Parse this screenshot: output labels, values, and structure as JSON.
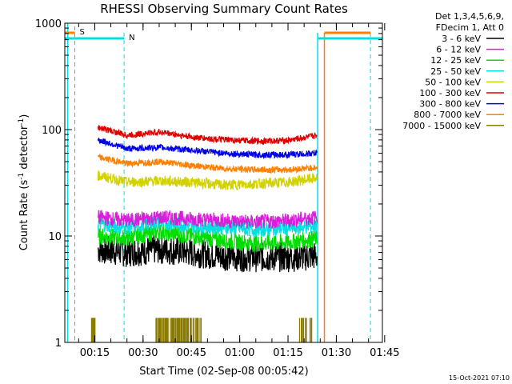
{
  "chart_data": {
    "type": "line",
    "title": "RHESSI Observing Summary Count Rates",
    "xlabel": "Start Time (02-Sep-08 00:05:42)",
    "ylabel_main": "Count Rate (s",
    "ylabel_sup1": "-1",
    "ylabel_mid": " detector",
    "ylabel_sup2": "-1",
    "ylabel_end": ")",
    "yscale": "log",
    "ylim": [
      1,
      1000
    ],
    "xlim_minutes": [
      5.7,
      104.3
    ],
    "y_ticks": [
      {
        "value": 1,
        "label": "1"
      },
      {
        "value": 10,
        "label": "10"
      },
      {
        "value": 100,
        "label": "100"
      },
      {
        "value": 1000,
        "label": "1000"
      }
    ],
    "x_ticks": [
      {
        "value": 15,
        "label": "00:15"
      },
      {
        "value": 30,
        "label": "00:30"
      },
      {
        "value": 45,
        "label": "00:45"
      },
      {
        "value": 60,
        "label": "01:00"
      },
      {
        "value": 75,
        "label": "01:15"
      },
      {
        "value": 90,
        "label": "01:30"
      },
      {
        "value": 105,
        "label": "01:45"
      }
    ],
    "legend_header": [
      "Det 1,3,4,5,6,9,",
      "FDecim 1, Att 0"
    ],
    "legend_position": "right",
    "series": [
      {
        "name": "3 - 6 keV",
        "color": "#000000",
        "x": [
          16,
          25,
          35,
          45,
          55,
          65,
          75,
          84
        ],
        "y": [
          7.5,
          7,
          7.5,
          7,
          6.5,
          6.3,
          6.3,
          6.5
        ]
      },
      {
        "name": "6 - 12 keV",
        "color": "#d81ed8",
        "x": [
          16,
          25,
          35,
          45,
          55,
          65,
          75,
          84
        ],
        "y": [
          15,
          14,
          15,
          14.5,
          14,
          13.5,
          14,
          15
        ]
      },
      {
        "name": "12 - 25 keV",
        "color": "#00dd00",
        "x": [
          16,
          25,
          35,
          45,
          55,
          65,
          75,
          84
        ],
        "y": [
          10,
          9.5,
          11,
          10,
          9,
          8.5,
          8.7,
          9.5
        ]
      },
      {
        "name": "25 - 50 keV",
        "color": "#00e0e0",
        "x": [
          16,
          25,
          35,
          45,
          55,
          65,
          75,
          84
        ],
        "y": [
          13,
          12,
          13.5,
          12.5,
          12,
          11.5,
          11.8,
          12.5
        ]
      },
      {
        "name": "50 - 100 keV",
        "color": "#d2d200",
        "x": [
          16,
          25,
          35,
          45,
          55,
          65,
          75,
          84
        ],
        "y": [
          37,
          32,
          33,
          32,
          30,
          31,
          32,
          35
        ]
      },
      {
        "name": "100 - 300 keV",
        "color": "#e00000",
        "x": [
          16,
          25,
          35,
          45,
          55,
          65,
          75,
          84
        ],
        "y": [
          105,
          88,
          95,
          85,
          80,
          78,
          79,
          88
        ]
      },
      {
        "name": "300 - 800 keV",
        "color": "#0000e8",
        "x": [
          16,
          25,
          35,
          45,
          55,
          65,
          75,
          84
        ],
        "y": [
          80,
          66,
          68,
          64,
          60,
          58,
          58,
          60
        ]
      },
      {
        "name": "800 - 7000 keV",
        "color": "#ff8000",
        "x": [
          16,
          25,
          35,
          45,
          55,
          65,
          75,
          84
        ],
        "y": [
          55,
          48,
          50,
          46,
          43,
          42,
          42,
          44
        ]
      },
      {
        "name": "7000 - 15000 keV",
        "color": "#8b7b00",
        "x": [
          14.5,
          34,
          48,
          78.5,
          82
        ],
        "y": [
          1.7,
          1.7,
          1.7,
          1.7,
          1.7
        ]
      }
    ],
    "flags": [
      {
        "label": "S",
        "color": "#ff8000"
      },
      {
        "label": "N",
        "color": "#00e0e0"
      }
    ],
    "footer_date": "15-Oct-2021 07:10"
  }
}
